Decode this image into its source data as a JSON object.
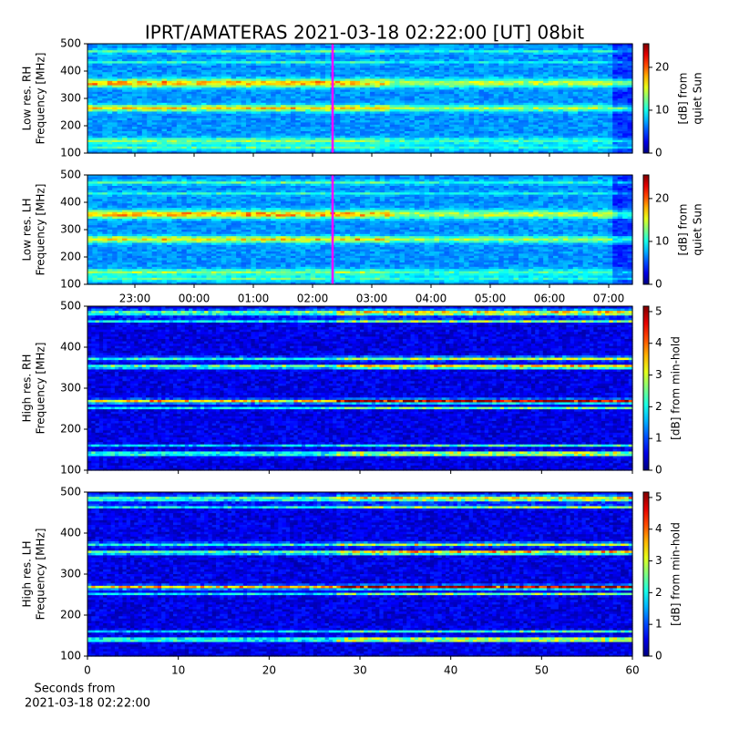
{
  "chart_data": [
    {
      "type": "heatmap",
      "title": "IPRT/AMATERAS 2021-03-18 02:22:00 [UT]   08bit",
      "ylabel": [
        "Low res. RH",
        "Frequency [MHz]"
      ],
      "ylim": [
        100,
        500
      ],
      "yticks": [
        100,
        200,
        300,
        400,
        500
      ],
      "clim": [
        0,
        25.5
      ],
      "cticks": [
        0,
        10,
        20
      ],
      "clabel": [
        "[dB] from",
        "quiet Sun"
      ],
      "colormap": "jet"
    },
    {
      "type": "heatmap",
      "ylabel": [
        "Low res. LH",
        "Frequency [MHz]"
      ],
      "ylim": [
        100,
        500
      ],
      "yticks": [
        100,
        200,
        300,
        400,
        500
      ],
      "xticks": [
        "23:00",
        "00:00",
        "01:00",
        "02:00",
        "03:00",
        "04:00",
        "05:00",
        "06:00",
        "07:00"
      ],
      "clim": [
        0,
        25.5
      ],
      "cticks": [
        0,
        10,
        20
      ],
      "clabel": [
        "[dB] from",
        "quiet Sun"
      ],
      "colormap": "jet"
    },
    {
      "type": "heatmap",
      "ylabel": [
        "High res. RH",
        "Frequency [MHz]"
      ],
      "ylim": [
        100,
        500
      ],
      "yticks": [
        100,
        200,
        300,
        400,
        500
      ],
      "clim": [
        0,
        5.17
      ],
      "cticks": [
        0,
        1,
        2,
        3,
        4,
        5
      ],
      "clabel": [
        "[dB] from min-hold"
      ],
      "colormap": "jet"
    },
    {
      "type": "heatmap",
      "ylabel": [
        "High res. LH",
        "Frequency [MHz]"
      ],
      "ylim": [
        100,
        500
      ],
      "yticks": [
        100,
        200,
        300,
        400,
        500
      ],
      "xlim": [
        0,
        60
      ],
      "xticks": [
        0,
        10,
        20,
        30,
        40,
        50,
        60
      ],
      "xlabel": [
        "Seconds from",
        "2021-03-18 02:22:00"
      ],
      "clim": [
        0,
        5.17
      ],
      "cticks": [
        0,
        1,
        2,
        3,
        4,
        5
      ],
      "clabel": [
        "[dB] from min-hold"
      ],
      "colormap": "jet"
    }
  ]
}
